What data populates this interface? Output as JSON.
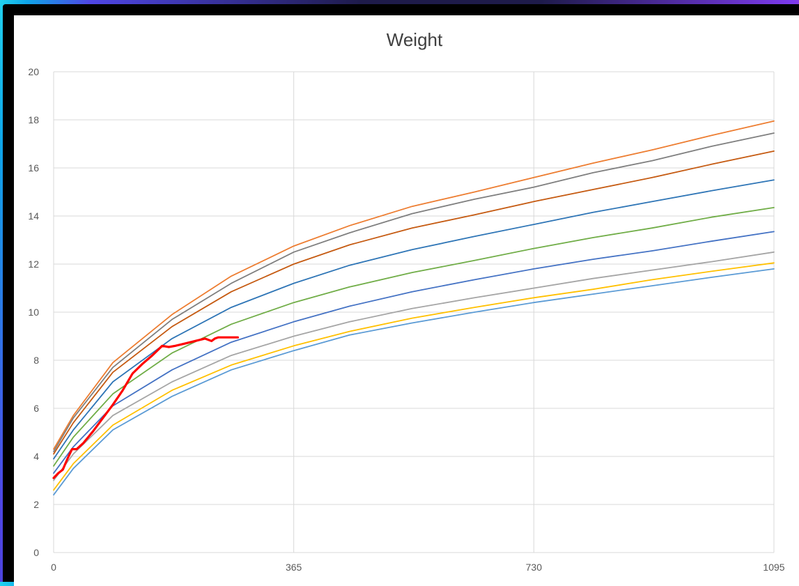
{
  "chart_data": {
    "type": "line",
    "title": "Weight",
    "xlabel": "",
    "ylabel": "",
    "xlim": [
      0,
      1095
    ],
    "ylim": [
      0,
      20
    ],
    "x_ticks": [
      "0",
      "365",
      "730",
      "1095"
    ],
    "y_ticks": [
      "0",
      "2",
      "4",
      "6",
      "8",
      "10",
      "12",
      "14",
      "16",
      "18",
      "20"
    ],
    "grid": true,
    "legend": "none",
    "series": [
      {
        "color": "#ED7D31",
        "x": [
          0,
          30,
          90,
          180,
          270,
          365,
          450,
          545,
          640,
          730,
          820,
          910,
          1000,
          1095
        ],
        "values": [
          4.3,
          5.7,
          7.9,
          9.9,
          11.5,
          12.75,
          13.6,
          14.4,
          15.0,
          15.6,
          16.2,
          16.75,
          17.35,
          17.95
        ]
      },
      {
        "color": "#7F7F7F",
        "x": [
          0,
          30,
          90,
          180,
          270,
          365,
          450,
          545,
          640,
          730,
          820,
          910,
          1000,
          1095
        ],
        "values": [
          4.2,
          5.6,
          7.7,
          9.7,
          11.2,
          12.5,
          13.3,
          14.1,
          14.7,
          15.2,
          15.8,
          16.3,
          16.9,
          17.45
        ]
      },
      {
        "color": "#C55A11",
        "x": [
          0,
          30,
          90,
          180,
          270,
          365,
          450,
          545,
          640,
          730,
          820,
          910,
          1000,
          1095
        ],
        "values": [
          4.1,
          5.4,
          7.5,
          9.4,
          10.85,
          12.0,
          12.8,
          13.5,
          14.05,
          14.6,
          15.1,
          15.6,
          16.15,
          16.7
        ]
      },
      {
        "color": "#2E75B6",
        "x": [
          0,
          30,
          90,
          180,
          270,
          365,
          450,
          545,
          640,
          730,
          820,
          910,
          1000,
          1095
        ],
        "values": [
          3.9,
          5.1,
          7.1,
          8.9,
          10.2,
          11.2,
          11.95,
          12.6,
          13.15,
          13.65,
          14.15,
          14.6,
          15.05,
          15.5
        ]
      },
      {
        "color": "#70AD47",
        "x": [
          0,
          30,
          90,
          180,
          270,
          365,
          450,
          545,
          640,
          730,
          820,
          910,
          1000,
          1095
        ],
        "values": [
          3.6,
          4.8,
          6.6,
          8.3,
          9.5,
          10.4,
          11.05,
          11.65,
          12.15,
          12.65,
          13.1,
          13.5,
          13.95,
          14.35
        ]
      },
      {
        "color": "#4472C4",
        "x": [
          0,
          30,
          90,
          180,
          270,
          365,
          450,
          545,
          640,
          730,
          820,
          910,
          1000,
          1095
        ],
        "values": [
          3.3,
          4.4,
          6.1,
          7.6,
          8.75,
          9.6,
          10.25,
          10.85,
          11.35,
          11.8,
          12.2,
          12.55,
          12.95,
          13.35
        ]
      },
      {
        "color": "#A5A5A5",
        "x": [
          0,
          30,
          90,
          180,
          270,
          365,
          450,
          545,
          640,
          730,
          820,
          910,
          1000,
          1095
        ],
        "values": [
          3.0,
          4.1,
          5.7,
          7.1,
          8.2,
          9.0,
          9.6,
          10.15,
          10.6,
          11.0,
          11.4,
          11.75,
          12.1,
          12.5
        ]
      },
      {
        "color": "#FFC000",
        "x": [
          0,
          30,
          90,
          180,
          270,
          365,
          450,
          545,
          640,
          730,
          820,
          910,
          1000,
          1095
        ],
        "values": [
          2.6,
          3.7,
          5.3,
          6.75,
          7.8,
          8.6,
          9.2,
          9.75,
          10.2,
          10.6,
          10.95,
          11.35,
          11.7,
          12.05
        ]
      },
      {
        "color": "#5B9BD5",
        "x": [
          0,
          30,
          90,
          180,
          270,
          365,
          450,
          545,
          640,
          730,
          820,
          910,
          1000,
          1095
        ],
        "values": [
          2.4,
          3.5,
          5.1,
          6.5,
          7.6,
          8.4,
          9.05,
          9.55,
          10.0,
          10.4,
          10.75,
          11.1,
          11.45,
          11.8
        ]
      },
      {
        "color": "#FF0000",
        "x": [
          0,
          7,
          14,
          21,
          28,
          35,
          45,
          60,
          75,
          90,
          105,
          120,
          135,
          150,
          165,
          175,
          185,
          200,
          215,
          230,
          240,
          245,
          250,
          260,
          280
        ],
        "values": [
          3.1,
          3.3,
          3.45,
          3.9,
          4.3,
          4.3,
          4.55,
          5.05,
          5.6,
          6.15,
          6.75,
          7.45,
          7.85,
          8.2,
          8.6,
          8.55,
          8.6,
          8.7,
          8.8,
          8.9,
          8.8,
          8.9,
          8.95,
          8.95,
          8.95
        ]
      }
    ]
  }
}
